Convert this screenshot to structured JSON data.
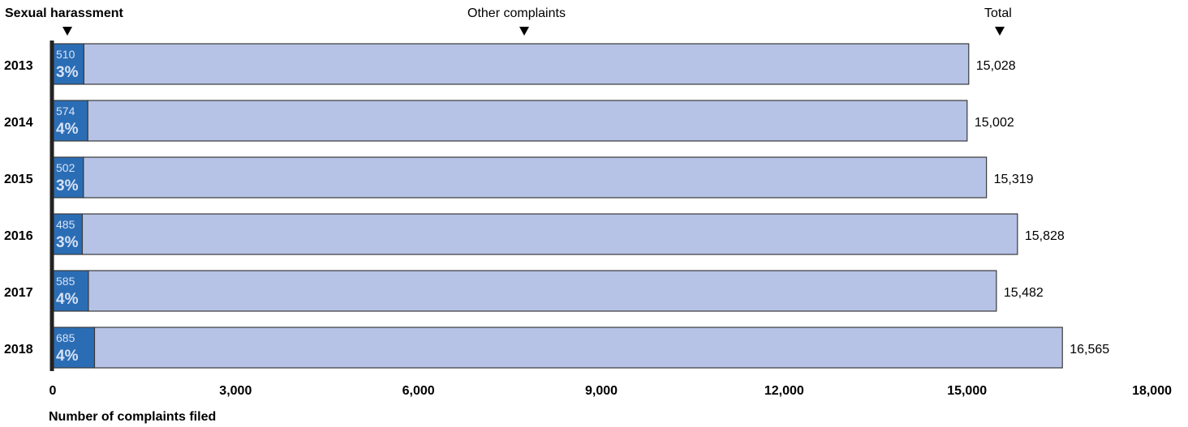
{
  "headers": {
    "sexual_harassment": "Sexual harassment",
    "other_complaints": "Other complaints",
    "total": "Total"
  },
  "colors": {
    "sexual_harassment": "#2a6db5",
    "other_complaints": "#b6c3e6",
    "border": "#3a3a3a",
    "axis": "#222222",
    "pct_text": "#d8e2f5"
  },
  "chart_data": {
    "type": "bar",
    "orientation": "horizontal",
    "stacked": true,
    "categories": [
      "2013",
      "2014",
      "2015",
      "2016",
      "2017",
      "2018"
    ],
    "series": [
      {
        "name": "Sexual harassment",
        "values": [
          510,
          574,
          502,
          485,
          585,
          685
        ],
        "labels": [
          "510",
          "574",
          "502",
          "485",
          "585",
          "685"
        ],
        "percent_labels": [
          "3%",
          "4%",
          "3%",
          "3%",
          "4%",
          "4%"
        ]
      },
      {
        "name": "Other complaints",
        "values": [
          14518,
          14428,
          14817,
          15343,
          14897,
          15880
        ]
      }
    ],
    "totals": [
      15028,
      15002,
      15319,
      15828,
      15482,
      16565
    ],
    "total_labels": [
      "15,028",
      "15,002",
      "15,319",
      "15,828",
      "15,482",
      "16,565"
    ],
    "xlim": [
      0,
      18000
    ],
    "xticks": [
      0,
      3000,
      6000,
      9000,
      12000,
      15000,
      18000
    ],
    "xtick_labels": [
      "0",
      "3,000",
      "6,000",
      "9,000",
      "12,000",
      "15,000",
      "18,000"
    ],
    "xlabel": "Number of complaints filed",
    "ylabel": "",
    "grid": false
  }
}
